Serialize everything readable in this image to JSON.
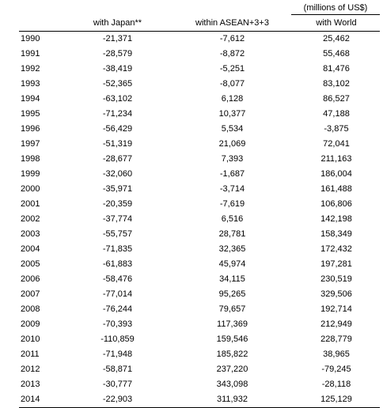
{
  "units_note": "(millions of US$)",
  "columns": [
    "",
    "with Japan**",
    "within ASEAN+3+3",
    "with World"
  ],
  "rows": [
    {
      "year": "1990",
      "japan": "-21,371",
      "asean": "-7,612",
      "world": "25,462"
    },
    {
      "year": "1991",
      "japan": "-28,579",
      "asean": "-8,872",
      "world": "55,468"
    },
    {
      "year": "1992",
      "japan": "-38,419",
      "asean": "-5,251",
      "world": "81,476"
    },
    {
      "year": "1993",
      "japan": "-52,365",
      "asean": "-8,077",
      "world": "83,102"
    },
    {
      "year": "1994",
      "japan": "-63,102",
      "asean": "6,128",
      "world": "86,527"
    },
    {
      "year": "1995",
      "japan": "-71,234",
      "asean": "10,377",
      "world": "47,188"
    },
    {
      "year": "1996",
      "japan": "-56,429",
      "asean": "5,534",
      "world": "-3,875"
    },
    {
      "year": "1997",
      "japan": "-51,319",
      "asean": "21,069",
      "world": "72,041"
    },
    {
      "year": "1998",
      "japan": "-28,677",
      "asean": "7,393",
      "world": "211,163"
    },
    {
      "year": "1999",
      "japan": "-32,060",
      "asean": "-1,687",
      "world": "186,004"
    },
    {
      "year": "2000",
      "japan": "-35,971",
      "asean": "-3,714",
      "world": "161,488"
    },
    {
      "year": "2001",
      "japan": "-20,359",
      "asean": "-7,619",
      "world": "106,806"
    },
    {
      "year": "2002",
      "japan": "-37,774",
      "asean": "6,516",
      "world": "142,198"
    },
    {
      "year": "2003",
      "japan": "-55,757",
      "asean": "28,781",
      "world": "158,349"
    },
    {
      "year": "2004",
      "japan": "-71,835",
      "asean": "32,365",
      "world": "172,432"
    },
    {
      "year": "2005",
      "japan": "-61,883",
      "asean": "45,974",
      "world": "197,281"
    },
    {
      "year": "2006",
      "japan": "-58,476",
      "asean": "34,115",
      "world": "230,519"
    },
    {
      "year": "2007",
      "japan": "-77,014",
      "asean": "95,265",
      "world": "329,506"
    },
    {
      "year": "2008",
      "japan": "-76,244",
      "asean": "79,657",
      "world": "192,714"
    },
    {
      "year": "2009",
      "japan": "-70,393",
      "asean": "117,369",
      "world": "212,949"
    },
    {
      "year": "2010",
      "japan": "-110,859",
      "asean": "159,546",
      "world": "228,779"
    },
    {
      "year": "2011",
      "japan": "-71,948",
      "asean": "185,822",
      "world": "38,965"
    },
    {
      "year": "2012",
      "japan": "-58,871",
      "asean": "237,220",
      "world": "-79,245"
    },
    {
      "year": "2013",
      "japan": "-30,777",
      "asean": "343,098",
      "world": "-28,118"
    },
    {
      "year": "2014",
      "japan": "-22,903",
      "asean": "311,932",
      "world": "125,129"
    }
  ]
}
